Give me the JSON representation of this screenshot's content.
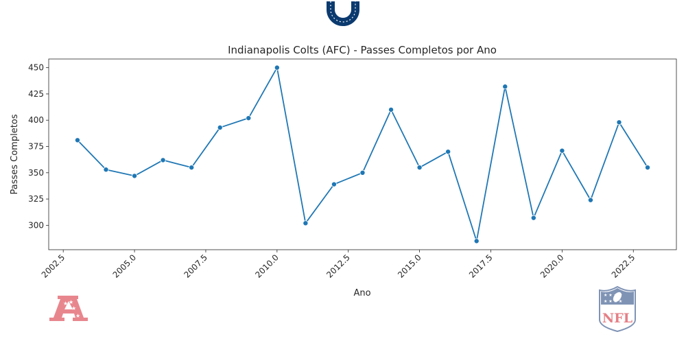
{
  "logos": {
    "team_logo": "horseshoe-icon",
    "conference_logo": "afc-icon",
    "league_logo": "nfl-icon",
    "league_logo_text": "NFL",
    "team_color": "#0b3a6f",
    "afc_color": "#e8868e",
    "nfl_blue": "#7f93b5",
    "nfl_red": "#e57f86"
  },
  "chart_data": {
    "type": "line",
    "title": "Indianapolis Colts (AFC) - Passes Completos por Ano",
    "xlabel": "Ano",
    "ylabel": "Passes Completos",
    "x": [
      2003,
      2004,
      2005,
      2006,
      2007,
      2008,
      2009,
      2010,
      2011,
      2012,
      2013,
      2014,
      2015,
      2016,
      2017,
      2018,
      2019,
      2020,
      2021,
      2022,
      2023
    ],
    "series": [
      {
        "values": [
          381,
          353,
          347,
          362,
          355,
          393,
          402,
          450,
          302,
          339,
          350,
          410,
          355,
          370,
          285,
          432,
          307,
          371,
          324,
          398,
          355
        ],
        "color": "#1f77b4"
      }
    ],
    "xlim": [
      2001.99,
      2024.01
    ],
    "ylim": [
      276.75,
      458.25
    ],
    "xticks": [
      2002.5,
      2005.0,
      2007.5,
      2010.0,
      2012.5,
      2015.0,
      2017.5,
      2020.0,
      2022.5
    ],
    "xtick_labels": [
      "2002.5",
      "2005.0",
      "2007.5",
      "2010.0",
      "2012.5",
      "2015.0",
      "2017.5",
      "2020.0",
      "2022.5"
    ],
    "yticks": [
      300,
      325,
      350,
      375,
      400,
      425,
      450
    ],
    "ytick_labels": [
      "300",
      "325",
      "350",
      "375",
      "400",
      "425",
      "450"
    ],
    "grid": false,
    "legend": "none"
  }
}
